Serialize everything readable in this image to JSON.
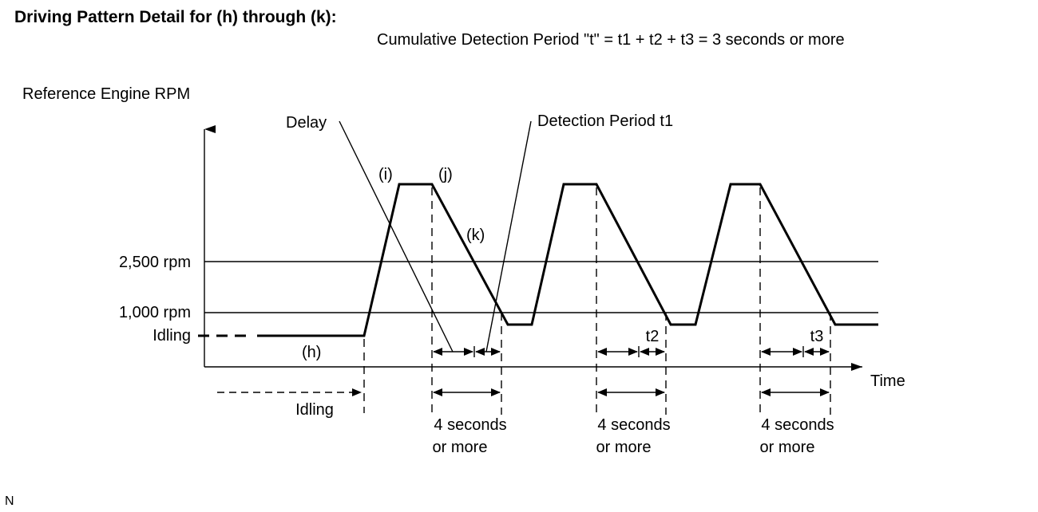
{
  "title": "Driving Pattern Detail for (h) through (k):",
  "subtitle": "Cumulative Detection Period \"t\" = t1 + t2 + t3 = 3 seconds or more",
  "y_axis_label": "Reference Engine RPM",
  "x_axis_label": "Time",
  "levels": {
    "high": "2,500 rpm",
    "mid": "1,000 rpm",
    "idle": "Idling"
  },
  "segment_labels": {
    "h": "(h)",
    "i": "(i)",
    "j": "(j)",
    "k": "(k)"
  },
  "callouts": {
    "delay": "Delay",
    "detection": "Detection Period t1"
  },
  "period_labels": {
    "t2": "t2",
    "t3": "t3"
  },
  "idling_duration": "Idling",
  "interval_label": {
    "line1": "4 seconds",
    "line2": "or more"
  },
  "footer_code": "N"
}
